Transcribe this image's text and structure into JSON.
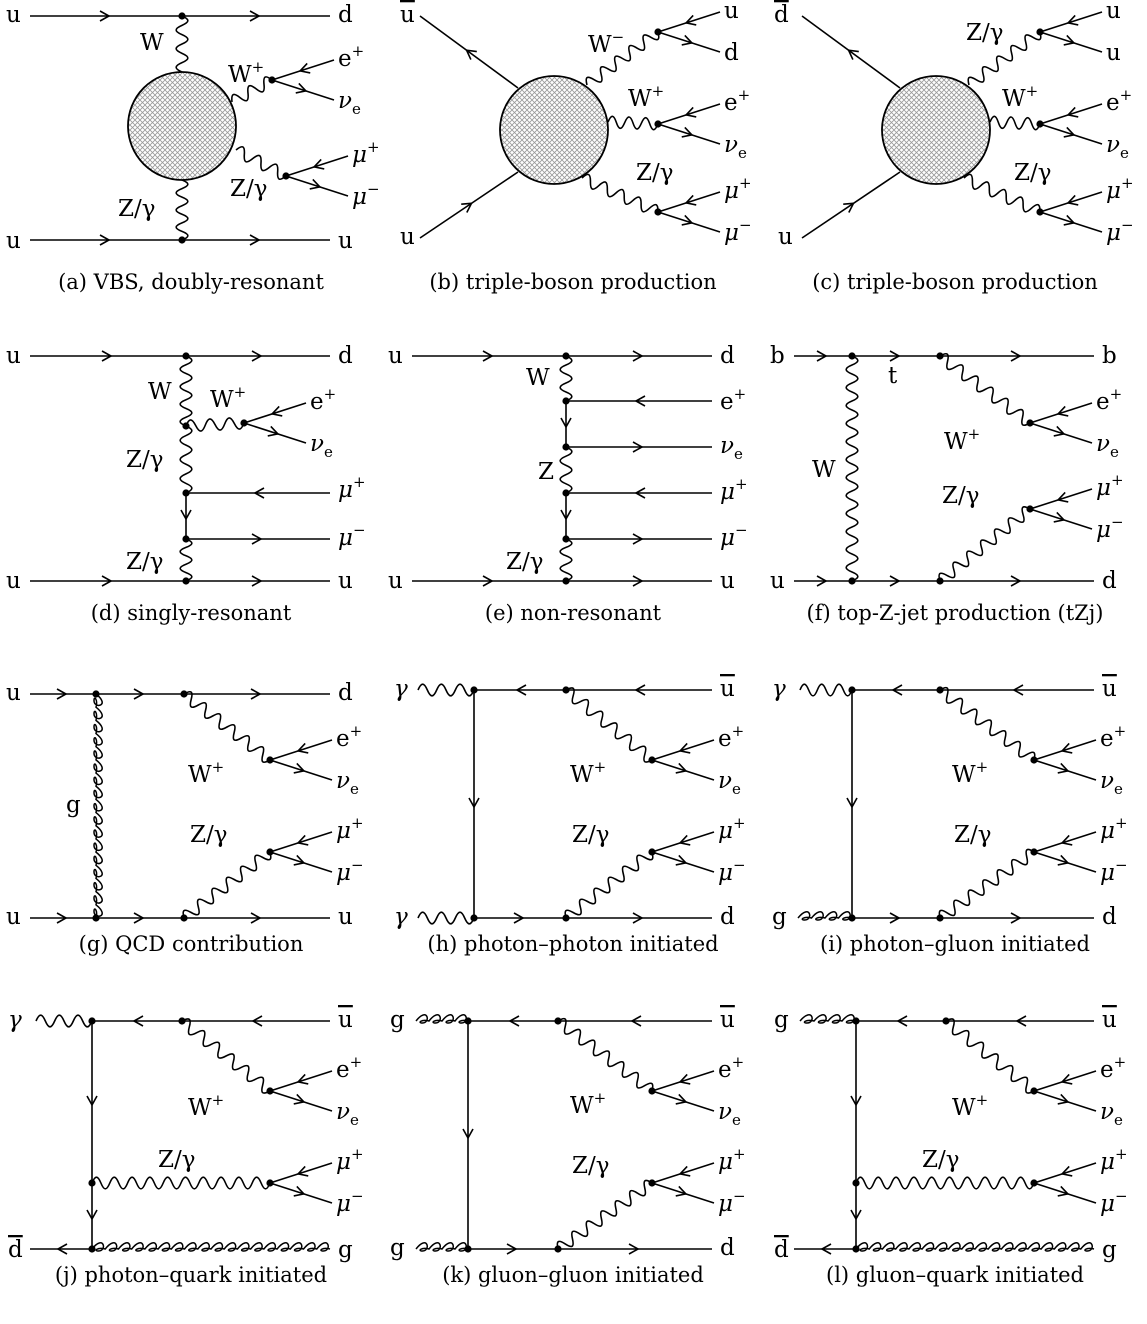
{
  "captions": [
    "(a) VBS, doubly-resonant",
    "(b) triple-boson production",
    "(c) triple-boson production",
    "(d) singly-resonant",
    "(e) non-resonant",
    "(f) top-Z-jet production (tZj)",
    "(g) QCD contribution",
    "(h) photon–photon initiated",
    "(i) photon–gluon initiated",
    "(j) photon–quark initiated",
    "(k) gluon–gluon initiated",
    "(l) gluon–quark initiated"
  ],
  "particles": {
    "u": "u",
    "d": "d",
    "b": "b",
    "t": "t",
    "g": "g",
    "W": "W",
    "Z": "Z",
    "Zgamma": "Z/γ",
    "gamma": "γ",
    "e": "e",
    "e_sub": "e",
    "nu": "ν",
    "mu": "μ",
    "plus": "+",
    "minus": "−"
  }
}
